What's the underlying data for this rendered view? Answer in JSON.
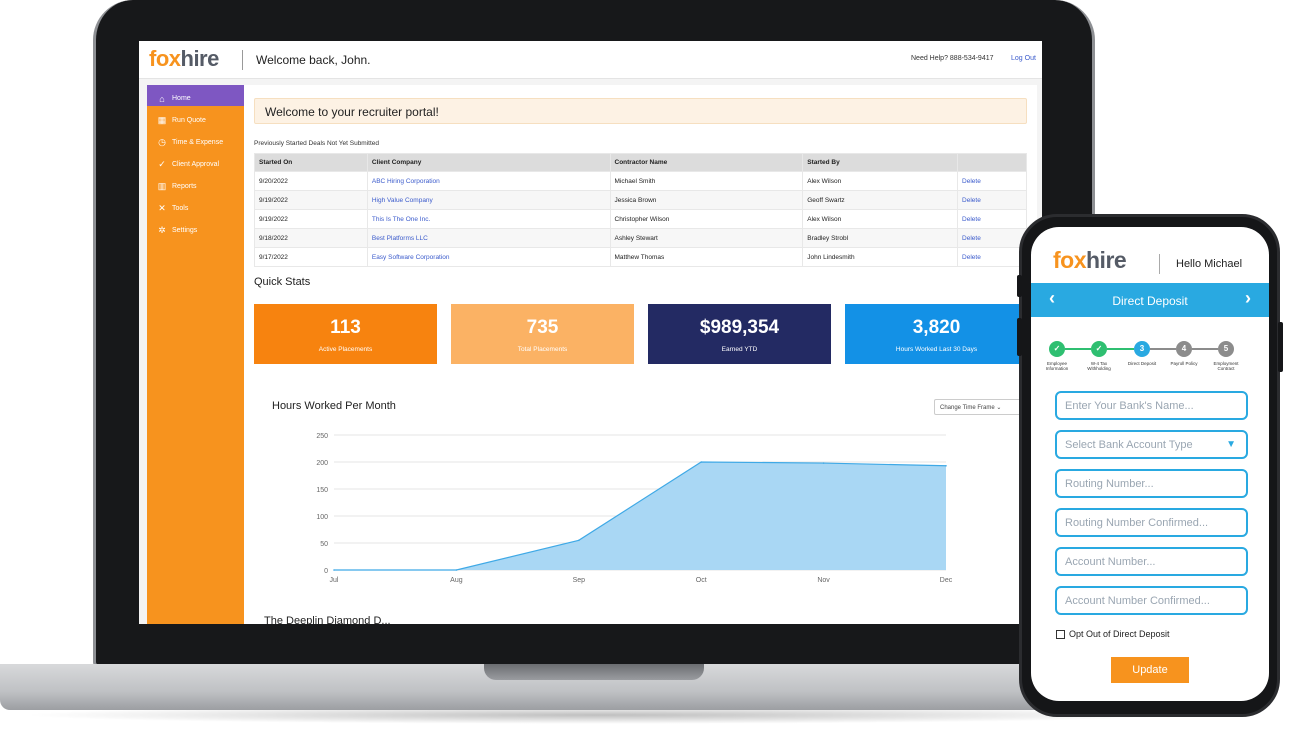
{
  "app": {
    "logo_fox": "fox",
    "logo_hire": "hire",
    "welcome": "Welcome back, John.",
    "help": "Need Help? 888-534-9417",
    "logout": "Log Out"
  },
  "sidebar": {
    "items": [
      {
        "label": "Home",
        "icon": "home-icon",
        "glyph": "⌂"
      },
      {
        "label": "Run Quote",
        "icon": "calculator-icon",
        "glyph": "▦"
      },
      {
        "label": "Time & Expense",
        "icon": "clock-icon",
        "glyph": "◷"
      },
      {
        "label": "Client Approval",
        "icon": "check-icon",
        "glyph": "✓"
      },
      {
        "label": "Reports",
        "icon": "chart-icon",
        "glyph": "▥"
      },
      {
        "label": "Tools",
        "icon": "tools-icon",
        "glyph": "✕"
      },
      {
        "label": "Settings",
        "icon": "gear-icon",
        "glyph": "✲"
      }
    ]
  },
  "main": {
    "banner": "Welcome to your recruiter portal!",
    "deals_caption": "Previously Started Deals Not Yet Submitted",
    "table": {
      "headers": [
        "Started On",
        "Client Company",
        "Contractor Name",
        "Started By",
        ""
      ],
      "rows": [
        [
          "9/20/2022",
          "ABC Hiring Corporation",
          "Michael Smith",
          "Alex Wilson",
          "Delete"
        ],
        [
          "9/19/2022",
          "High Value Company",
          "Jessica Brown",
          "Geoff Swartz",
          "Delete"
        ],
        [
          "9/19/2022",
          "This Is The One Inc.",
          "Christopher Wilson",
          "Alex Wilson",
          "Delete"
        ],
        [
          "9/18/2022",
          "Best Platforms LLC",
          "Ashley Stewart",
          "Bradley Strobl",
          "Delete"
        ],
        [
          "9/17/2022",
          "Easy Software Corporation",
          "Matthew Thomas",
          "John Lindesmith",
          "Delete"
        ]
      ]
    },
    "quick_stats_title": "Quick Stats",
    "stats": [
      {
        "value": "113",
        "label": "Active Placements",
        "color": "#f7830f"
      },
      {
        "value": "735",
        "label": "Total Placements",
        "color": "#fbb264"
      },
      {
        "value": "$989,354",
        "label": "Earned YTD",
        "color": "#232a63"
      },
      {
        "value": "3,820",
        "label": "Hours Worked Last 30 Days",
        "color": "#1391e6"
      }
    ],
    "chart_title": "Hours Worked Per Month",
    "timeframe_select": "Change Time Frame",
    "cut_text": "The Deeplin Diamond D..."
  },
  "chart_data": {
    "type": "area",
    "title": "Hours Worked Per Month",
    "categories": [
      "Jul",
      "Aug",
      "Sep",
      "Oct",
      "Nov",
      "Dec"
    ],
    "values": [
      0,
      0,
      55,
      200,
      198,
      193
    ],
    "yticks": [
      0,
      50,
      100,
      150,
      200,
      250
    ],
    "ylim": [
      0,
      250
    ],
    "fill_color": "#a9d7f4",
    "line_color": "#3fa9e6",
    "grid": true
  },
  "phone": {
    "logo_fox": "fox",
    "logo_hire": "hire",
    "hello": "Hello Michael",
    "nav_title": "Direct Deposit",
    "steps": [
      {
        "n": "✓",
        "label": "Employee Information",
        "state": "done"
      },
      {
        "n": "✓",
        "label": "W-4 Tax Withholding",
        "state": "done"
      },
      {
        "n": "3",
        "label": "Direct Deposit",
        "state": "current"
      },
      {
        "n": "4",
        "label": "Payroll Policy",
        "state": "todo"
      },
      {
        "n": "5",
        "label": "Employment Contract",
        "state": "todo"
      }
    ],
    "fields": [
      "Enter Your Bank's Name...",
      "Select Bank Account Type",
      "Routing Number...",
      "Routing Number Confirmed...",
      "Account Number...",
      "Account Number Confirmed..."
    ],
    "opt_out": "Opt Out of Direct Deposit",
    "update": "Update",
    "colors": {
      "done": "#2fbf71",
      "current": "#29a9e1",
      "todo": "#8c8c8c"
    }
  }
}
